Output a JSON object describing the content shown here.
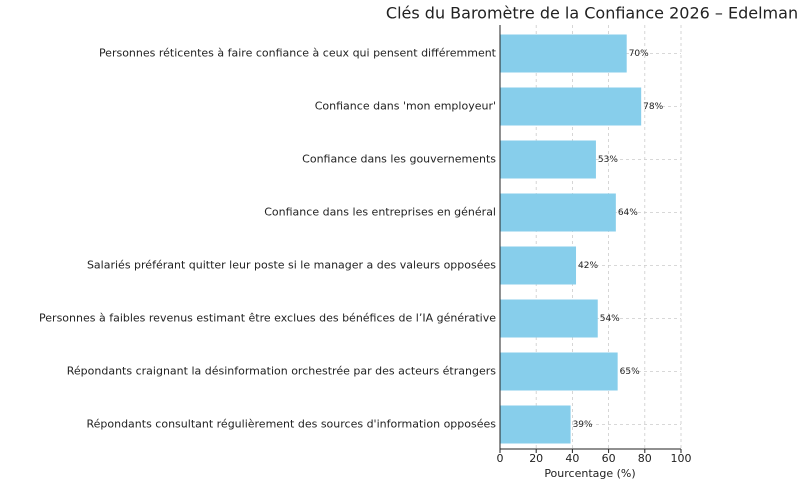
{
  "chart_data": {
    "type": "bar",
    "orientation": "horizontal",
    "title": "Clés du Baromètre de la Confiance 2026 – Edelman",
    "x_label": "Pourcentage (%)",
    "categories": [
      "Personnes réticentes à faire confiance à ceux qui pensent différemment",
      "Confiance dans 'mon employeur'",
      "Confiance dans les gouvernements",
      "Confiance dans les entreprises en général",
      "Salariés préférant quitter leur poste si le manager a des valeurs opposées",
      "Personnes à faibles revenus estimant être exclues des bénéfices de l’IA générative",
      "Répondants craignant la désinformation orchestrée par des acteurs étrangers",
      "Répondants consultant régulièrement des sources d'information opposées"
    ],
    "values": [
      70,
      78,
      53,
      64,
      42,
      54,
      65,
      39
    ],
    "value_labels": [
      "70%",
      "78%",
      "53%",
      "64%",
      "42%",
      "54%",
      "65%",
      "39%"
    ],
    "color": "#87ceeb",
    "xlim": [
      0,
      100
    ],
    "xticks": [
      0,
      20,
      40,
      60,
      80,
      100
    ],
    "grid": true
  }
}
